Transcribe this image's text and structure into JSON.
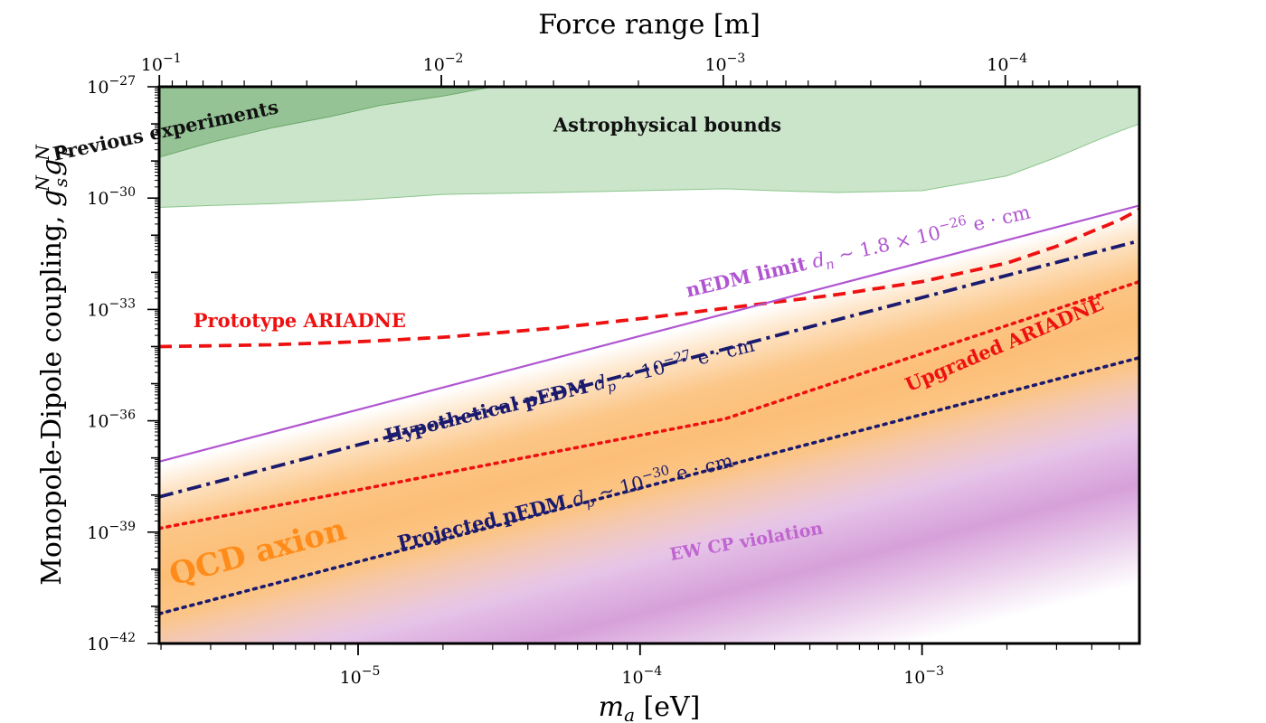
{
  "chart_data": {
    "type": "line",
    "title": "",
    "xlabel": "m_a [eV]",
    "xlabel_parts": {
      "symbol": "m",
      "sub": "a",
      "unit": " [eV]"
    },
    "ylabel": "Monopole-Dipole coupling, g_s^N g_p^N",
    "ylabel_parts": {
      "text": "Monopole-Dipole coupling, ",
      "g1": "g",
      "g1_sup": "N",
      "g1_sub": "s",
      "g2": "g",
      "g2_sup": "N",
      "g2_sub": "p"
    },
    "top_xlabel": "Force range [m]",
    "x_scale": "log",
    "y_scale": "log",
    "xlim": [
      1.97e-06,
      0.0059
    ],
    "ylim": [
      1e-42,
      1e-27
    ],
    "x_ticks": [
      {
        "value": 1e-05,
        "base": "10",
        "exp": "−5"
      },
      {
        "value": 0.0001,
        "base": "10",
        "exp": "−4"
      },
      {
        "value": 0.001,
        "base": "10",
        "exp": "−3"
      }
    ],
    "y_ticks": [
      {
        "value": 1e-27,
        "base": "10",
        "exp": "−27"
      },
      {
        "value": 1e-30,
        "base": "10",
        "exp": "−30"
      },
      {
        "value": 1e-33,
        "base": "10",
        "exp": "−33"
      },
      {
        "value": 1e-36,
        "base": "10",
        "exp": "−36"
      },
      {
        "value": 1e-39,
        "base": "10",
        "exp": "−39"
      },
      {
        "value": 1e-42,
        "base": "10",
        "exp": "−42"
      }
    ],
    "top_ticks": [
      {
        "value": 0.1,
        "base": "10",
        "exp": "−1"
      },
      {
        "value": 0.01,
        "base": "10",
        "exp": "−2"
      },
      {
        "value": 0.001,
        "base": "10",
        "exp": "−3"
      },
      {
        "value": 0.0001,
        "base": "10",
        "exp": "−4"
      }
    ],
    "series": [
      {
        "name": "Prototype ARIADNE",
        "color": "#ee1111",
        "dash": "dashed",
        "x": [
          2e-06,
          3e-06,
          5e-06,
          1e-05,
          2e-05,
          5e-05,
          0.0001,
          0.0002,
          0.0005,
          0.001,
          0.002,
          0.003,
          0.004,
          0.005,
          0.0059
        ],
        "y": [
          -34,
          -33.98,
          -33.95,
          -33.87,
          -33.75,
          -33.5,
          -33.25,
          -32.97,
          -32.6,
          -32.25,
          -31.75,
          -31.3,
          -30.9,
          -30.6,
          -30.3
        ]
      },
      {
        "name": "nEDM limit",
        "color": "#b055d0",
        "dash": "solid",
        "x": [
          1.97e-06,
          0.0059
        ],
        "y": [
          -37.1,
          -30.2
        ]
      },
      {
        "name": "Hypothetical pEDM",
        "color": "#1a1a6e",
        "dash": "dashdot",
        "x": [
          1.97e-06,
          0.0059
        ],
        "y": [
          -38.05,
          -31.15
        ]
      },
      {
        "name": "Upgraded ARIADNE",
        "color": "#ee1111",
        "dash": "dotted",
        "x": [
          1.97e-06,
          0.0002,
          0.0059
        ],
        "y": [
          -38.9,
          -35.95,
          -32.25
        ]
      },
      {
        "name": "Projected pEDM",
        "color": "#1a1a6e",
        "dash": "dotted",
        "x": [
          1.97e-06,
          0.0059
        ],
        "y": [
          -41.2,
          -34.3
        ]
      }
    ],
    "regions": [
      {
        "name": "Astrophysical bounds",
        "color": "#8cc68c",
        "opacity": 0.45,
        "x": [
          1.97e-06,
          3e-06,
          5e-06,
          1e-05,
          2e-05,
          5e-05,
          0.0001,
          0.0002,
          0.0003,
          0.0005,
          0.001,
          0.002,
          0.003,
          0.004,
          0.005,
          0.0059
        ],
        "y_lower": [
          -30.25,
          -30.2,
          -30.15,
          -30.05,
          -29.9,
          -29.85,
          -29.8,
          -29.75,
          -29.8,
          -29.85,
          -29.8,
          -29.4,
          -28.9,
          -28.5,
          -28.2,
          -28.0
        ]
      },
      {
        "name": "Previous experiments",
        "color": "#6aa86a",
        "opacity": 0.55,
        "x": [
          1.97e-06,
          3e-06,
          5e-06,
          8e-06,
          1.2e-05,
          2e-05,
          3e-05
        ],
        "y_lower": [
          -28.9,
          -28.5,
          -28.1,
          -27.8,
          -27.5,
          -27.25,
          -27.0
        ]
      }
    ],
    "bands": [
      {
        "name": "QCD axion band",
        "color": "#fbb35f",
        "offset_from_nedm_top": 0.1,
        "thickness": 6.0
      },
      {
        "name": "EW CP violation band",
        "color": "#cc88d0",
        "offset_from_nedm_top": 4.2,
        "thickness": 6.0
      }
    ],
    "annotations": [
      {
        "name": "previous-experiments-label",
        "text": "Previous experiments",
        "color": "#111111",
        "size": 21,
        "x": 2.1e-06,
        "y": -28.35,
        "angle": -12
      },
      {
        "name": "astrophysical-bounds-label",
        "text": "Astrophysical bounds",
        "color": "#111111",
        "size": 21,
        "x": 0.000125,
        "y": -28.2,
        "angle": 0
      },
      {
        "name": "prototype-ariadne-label",
        "text": "Prototype ARIADNE",
        "color": "#ee1111",
        "size": 21,
        "x": 6.2e-06,
        "y": -33.48,
        "angle": 0
      },
      {
        "name": "nedm-limit-label",
        "prefix": "nEDM limit ",
        "sym": "d",
        "sub": "n",
        "rest": " ∼ 1.8 × 10",
        "sup": "−26",
        "unit": " e · cm",
        "color": "#b055d0",
        "size": 21,
        "x": 0.0006,
        "y": -31.6,
        "angle": -13
      },
      {
        "name": "hypothetical-pedm-label",
        "prefix": "Hypothetical pEDM ",
        "sym": "d",
        "sub": "p",
        "rest": " ∼ 10",
        "sup": "−27",
        "unit": " e · cm",
        "color": "#1a1a6e",
        "size": 21,
        "x": 5.7e-05,
        "y": -35.35,
        "angle": -14
      },
      {
        "name": "upgraded-ariadne-label",
        "text": "Upgraded ARIADNE",
        "color": "#ee1111",
        "size": 21,
        "x": 0.002,
        "y": -34.1,
        "angle": -23
      },
      {
        "name": "projected-pedm-label",
        "prefix": "Projected pEDM ",
        "sym": "d",
        "sub": "p",
        "rest": " ∼ 10",
        "sup": "−30",
        "unit": " e · cm",
        "color": "#1a1a6e",
        "size": 21,
        "x": 5.5e-05,
        "y": -38.35,
        "angle": -14
      },
      {
        "name": "qcd-axion-label",
        "text": "QCD axion",
        "color": "#ff8c1a",
        "size": 34,
        "x": 4.5e-06,
        "y": -39.8,
        "angle": -15
      },
      {
        "name": "ew-cp-violation-label",
        "text": "EW CP violation",
        "color": "#c065d0",
        "size": 19,
        "x": 0.00024,
        "y": -39.4,
        "angle": -10
      }
    ]
  }
}
